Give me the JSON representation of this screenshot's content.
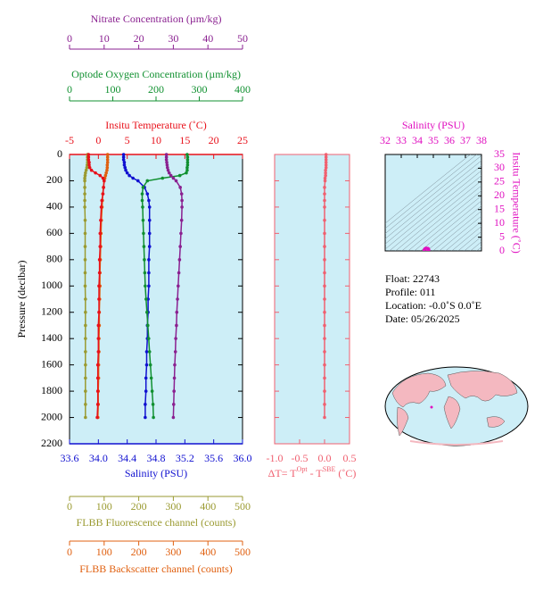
{
  "chart_data": [
    {
      "type": "profile",
      "ylabel": "Pressure (decibar)",
      "ylim": [
        0,
        2200
      ],
      "yticks": [
        0,
        200,
        400,
        600,
        800,
        1000,
        1200,
        1400,
        1600,
        1800,
        2000,
        2200
      ],
      "y": [
        0,
        20,
        40,
        60,
        80,
        100,
        120,
        140,
        160,
        180,
        200,
        250,
        300,
        350,
        400,
        500,
        600,
        700,
        800,
        900,
        1000,
        1100,
        1200,
        1300,
        1400,
        1500,
        1600,
        1700,
        1800,
        1900,
        2000
      ],
      "axes": [
        {
          "label": "Insitu Temperature (˚C)",
          "color": "#e8101a",
          "lim": [
            -5,
            25
          ],
          "ticks": [
            -5,
            0,
            5,
            10,
            15,
            20,
            25
          ]
        },
        {
          "label": "Optode Oxygen Concentration (µm/kg)",
          "color": "#109030",
          "lim": [
            0,
            400
          ],
          "ticks": [
            0,
            100,
            200,
            300,
            400
          ]
        },
        {
          "label": "Nitrate Concentration (µm/kg)",
          "color": "#8a2090",
          "lim": [
            0,
            50
          ],
          "ticks": [
            0,
            10,
            20,
            30,
            40,
            50
          ]
        },
        {
          "label": "Salinity (PSU)",
          "color": "#1010d0",
          "lim": [
            33.6,
            36.0
          ],
          "ticks": [
            33.6,
            {
              "value": 34,
              "label": "34.0"
            },
            34.4,
            34.8,
            35.2,
            35.6,
            {
              "value": 36,
              "label": "36.0"
            }
          ]
        },
        {
          "label": "FLBB Fluorescence channel (counts)",
          "color": "#9a9a30",
          "lim": [
            0,
            500
          ],
          "ticks": [
            0,
            100,
            200,
            300,
            400,
            500
          ]
        },
        {
          "label": "FLBB Backscatter channel (counts)",
          "color": "#e06010",
          "lim": [
            0,
            500
          ],
          "ticks": [
            0,
            100,
            200,
            300,
            400,
            500
          ]
        }
      ],
      "series": [
        {
          "axis": 4,
          "color": "#9a9a30",
          "values": [
            52,
            52,
            52,
            52,
            51,
            50,
            48,
            46,
            45,
            44,
            44,
            44,
            44,
            44,
            44,
            45,
            45,
            45,
            45,
            45,
            45,
            46,
            46,
            46,
            46,
            46,
            46,
            46,
            46,
            46,
            46
          ]
        },
        {
          "axis": 5,
          "color": "#e06010",
          "values": [
            110,
            110,
            110,
            110,
            109,
            109,
            108,
            106,
            104,
            102,
            100,
            98,
            96,
            95,
            94,
            92,
            91,
            90,
            89,
            88,
            88,
            87,
            86,
            86,
            85,
            85,
            84,
            84,
            83,
            83,
            82
          ]
        },
        {
          "axis": 0,
          "color": "#e8101a",
          "values": [
            -1.7,
            -1.7,
            -1.7,
            -1.6,
            -1.6,
            -1.5,
            -1.2,
            -0.5,
            0.3,
            0.8,
            1.0,
            0.9,
            0.8,
            0.6,
            0.5,
            0.4,
            0.3,
            0.3,
            0.2,
            0.2,
            0.1,
            0.1,
            0.1,
            0.0,
            0.0,
            0.0,
            -0.1,
            -0.1,
            -0.1,
            -0.1,
            -0.2
          ]
        },
        {
          "axis": 3,
          "color": "#1010d0",
          "values": [
            34.35,
            34.35,
            34.35,
            34.36,
            34.36,
            34.37,
            34.38,
            34.4,
            34.43,
            34.48,
            34.55,
            34.64,
            34.68,
            34.7,
            34.71,
            34.71,
            34.71,
            34.71,
            34.7,
            34.7,
            34.7,
            34.69,
            34.69,
            34.68,
            34.68,
            34.67,
            34.67,
            34.66,
            34.66,
            34.65,
            34.65
          ]
        },
        {
          "axis": 1,
          "color": "#109030",
          "values": [
            272,
            273,
            273,
            273,
            273,
            272,
            272,
            270,
            255,
            215,
            180,
            170,
            168,
            168,
            169,
            170,
            171,
            172,
            173,
            174,
            175,
            177,
            179,
            181,
            183,
            185,
            187,
            189,
            191,
            193,
            194
          ]
        },
        {
          "axis": 2,
          "color": "#8a2090",
          "values": [
            28.0,
            28.0,
            28.0,
            28.1,
            28.2,
            28.3,
            28.5,
            28.8,
            29.3,
            30.0,
            30.8,
            32.0,
            32.4,
            32.5,
            32.5,
            32.4,
            32.2,
            32.0,
            31.8,
            31.6,
            31.4,
            31.2,
            31.0,
            30.9,
            30.7,
            30.6,
            30.4,
            30.3,
            30.2,
            30.1,
            30.0
          ]
        }
      ]
    },
    {
      "type": "profile",
      "xlabel": [
        "ΔT= T",
        "Opt",
        " - T",
        "SBE",
        " (˚C)"
      ],
      "color": "#f06070",
      "xlim": [
        -1.0,
        0.5
      ],
      "xticks": [
        {
          "value": -1,
          "label": "-1.0"
        },
        -0.5,
        {
          "value": 0,
          "label": "0.0"
        },
        0.5
      ],
      "values": [
        0.03,
        0.03,
        0.03,
        0.03,
        0.03,
        0.03,
        0.02,
        0.02,
        0.02,
        0.01,
        0.01,
        0.0,
        0.0,
        0.0,
        0.0,
        0.0,
        0.0,
        0.0,
        0.0,
        0.0,
        0.0,
        0.0,
        0.0,
        0.0,
        0.0,
        0.0,
        0.0,
        0.0,
        0.0,
        0.0,
        0.0
      ]
    },
    {
      "type": "ts",
      "title": "Salinity (PSU)",
      "ylabel": "Insitu Temperature (˚C)",
      "color": "#e010c0",
      "xlim": [
        32,
        38
      ],
      "xticks": [
        32,
        33,
        34,
        35,
        36,
        37,
        38
      ],
      "ylim": [
        0,
        35
      ],
      "yticks": [
        0,
        5,
        10,
        15,
        20,
        25,
        30,
        35
      ]
    }
  ],
  "info": {
    "float": "Float:  22743",
    "profile": "Profile:  011",
    "location": "Location:  -0.0˚S   0.0˚E",
    "date": "Date:  05/26/2025"
  }
}
